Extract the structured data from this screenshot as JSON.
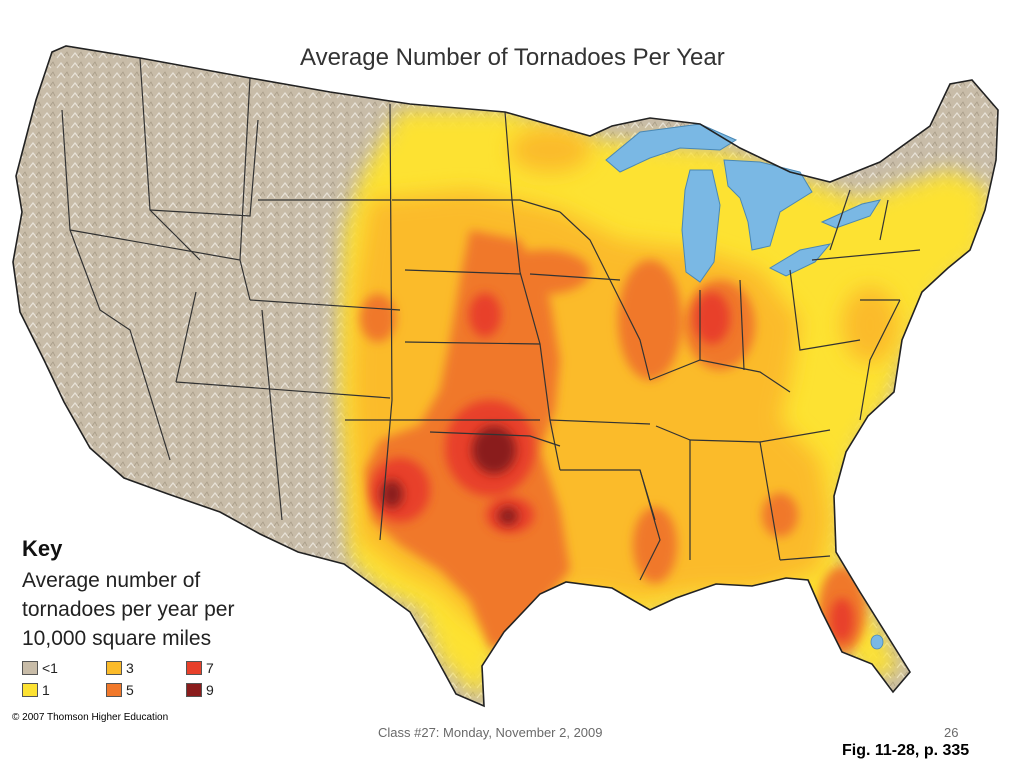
{
  "title": "Average Number of Tornadoes Per Year",
  "key": {
    "heading": "Key",
    "description_lines": [
      "Average number of",
      "tornadoes per year per",
      "10,000 square miles"
    ],
    "items": [
      {
        "label": "<1",
        "color": "#c8bca8"
      },
      {
        "label": "1",
        "color": "#fde232"
      },
      {
        "label": "3",
        "color": "#fbbb2a"
      },
      {
        "label": "5",
        "color": "#f0782a"
      },
      {
        "label": "7",
        "color": "#e8402a"
      },
      {
        "label": "9",
        "color": "#8a1c1c"
      }
    ]
  },
  "colors": {
    "land": "#c8bca8",
    "lakes": "#7ab8e4",
    "borders": "#333333"
  },
  "copyright": "© 2007 Thomson Higher Education",
  "footer": {
    "center": "Class #27:  Monday, November 2, 2009",
    "page_number": "26"
  },
  "figure_ref": "Fig. 11-28, p. 335"
}
